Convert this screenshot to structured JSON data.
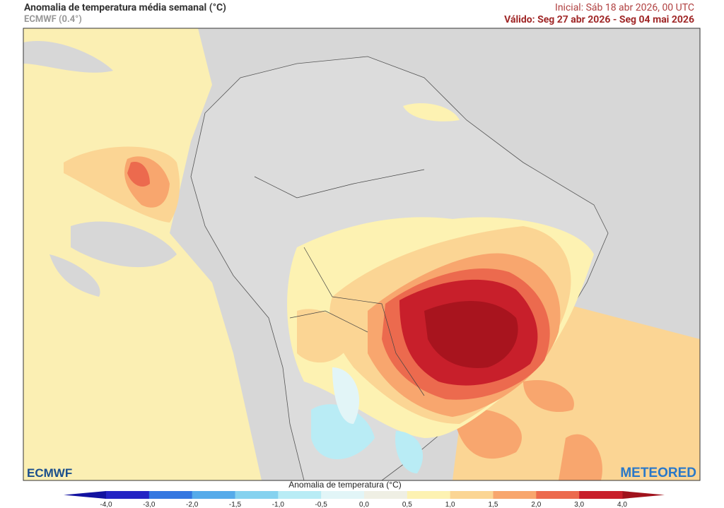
{
  "header": {
    "title": "Anomalia de temperatura média semanal (°C)",
    "model": "ECMWF (0.4°)",
    "initial": "Inicial: Sáb 18 abr 2026, 00 UTC",
    "valid": "Válido: Seg 27 abr 2026 - Seg 04 mai 2026"
  },
  "logos": {
    "left": "ECMWF",
    "right": "METEORED"
  },
  "colorbar": {
    "label": "Anomalia de temperatura (°C)",
    "ticks": [
      "-4,0",
      "-3,0",
      "-2,0",
      "-1,5",
      "-1,0",
      "-0,5",
      "0,0",
      "0,5",
      "1,0",
      "1,5",
      "2,0",
      "3,0",
      "4,0"
    ],
    "colors": [
      "#2424c4",
      "#3477e0",
      "#56abea",
      "#86d2ef",
      "#b9ecf5",
      "#e2f5f7",
      "#efefe4",
      "#fdf2b2",
      "#fbd594",
      "#f8a66e",
      "#ec6a4e",
      "#c81f2b"
    ],
    "low_color": "#1212a0",
    "high_color": "#a0121c"
  }
}
